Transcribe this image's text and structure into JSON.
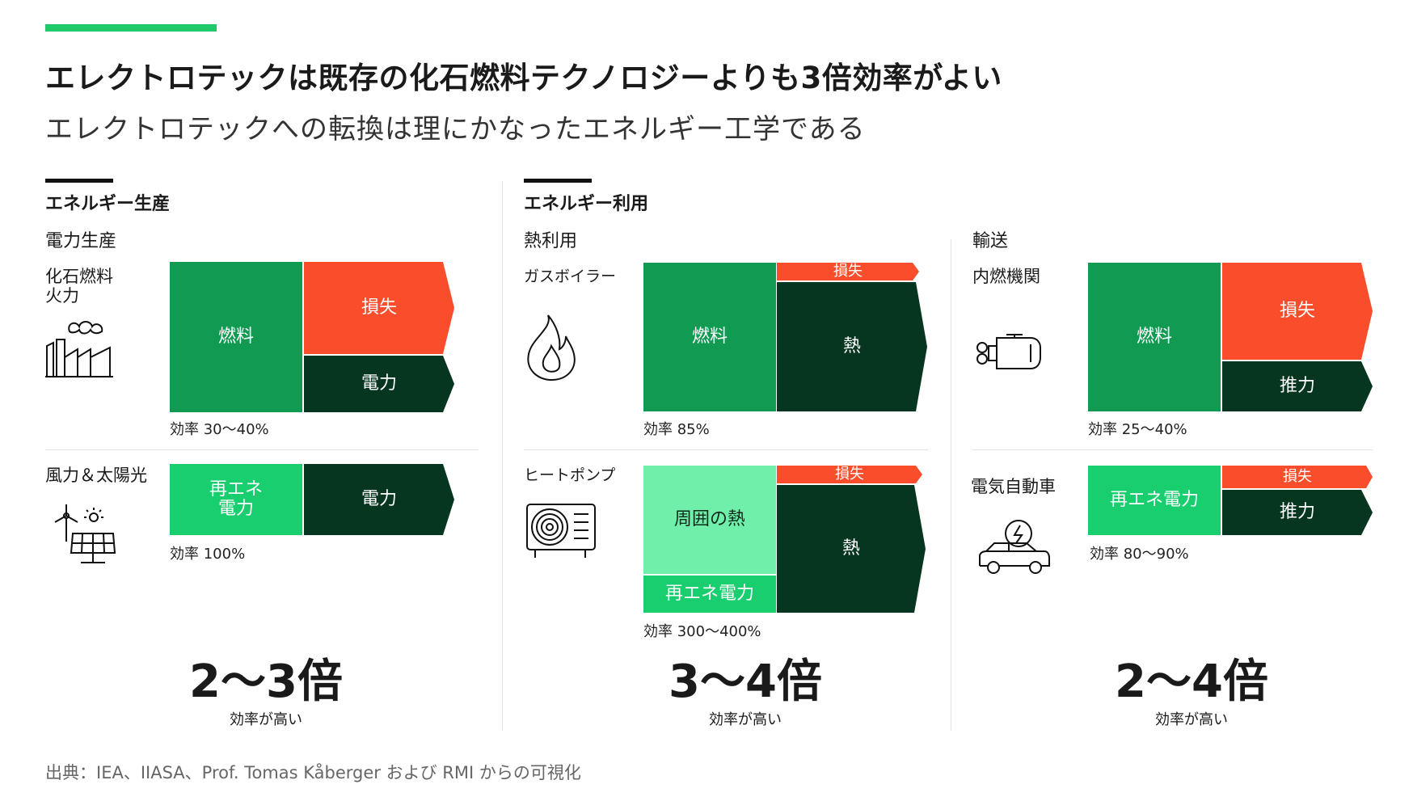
{
  "header": {
    "title": "エレクトロテックは既存の化石燃料テクノロジーよりも3倍効率がよい",
    "subtitle": "エレクトロテックへの転換は理にかなったエネルギー工学である"
  },
  "colors": {
    "accent": "#1ec96a",
    "fuel": "#119a52",
    "loss": "#f94d2b",
    "output": "#063520",
    "renewable": "#18ce6e",
    "ambient_heat": "#6fefaa"
  },
  "sections": {
    "production": {
      "title": "エネルギー生産",
      "subtitle": "電力生産",
      "rows": [
        {
          "label": "化石燃料\n火力",
          "icon": "factory-icon",
          "blocks": {
            "input": "燃料",
            "loss": "損失",
            "output": "電力"
          },
          "efficiency": "効率 30〜40%"
        },
        {
          "label": "風力＆太陽光",
          "icon": "wind-solar-icon",
          "blocks": {
            "input": "再エネ\n電力",
            "output": "電力"
          },
          "efficiency": "効率 100%"
        }
      ],
      "summary": {
        "value": "2〜3倍",
        "caption": "効率が高い"
      }
    },
    "usage": {
      "title": "エネルギー利用",
      "heat": {
        "subtitle": "熱利用",
        "rows": [
          {
            "label": "ガスボイラー",
            "icon": "flame-icon",
            "blocks": {
              "input": "燃料",
              "loss": "損失",
              "output": "熱"
            },
            "efficiency": "効率 85%"
          },
          {
            "label": "ヒートポンプ",
            "icon": "heat-pump-icon",
            "blocks": {
              "ambient": "周囲の熱",
              "input": "再エネ電力",
              "loss": "損失",
              "output": "熱"
            },
            "efficiency": "効率 300〜400%"
          }
        ],
        "summary": {
          "value": "3〜4倍",
          "caption": "効率が高い"
        }
      },
      "transport": {
        "subtitle": "輸送",
        "rows": [
          {
            "label": "内燃機関",
            "icon": "engine-icon",
            "blocks": {
              "input": "燃料",
              "loss": "損失",
              "output": "推力"
            },
            "efficiency": "効率 25〜40%"
          },
          {
            "label": "電気自動車",
            "icon": "electric-car-icon",
            "blocks": {
              "input": "再エネ電力",
              "loss": "損失",
              "output": "推力"
            },
            "efficiency": "効率 80〜90%"
          }
        ],
        "summary": {
          "value": "2〜4倍",
          "caption": "効率が高い"
        }
      }
    }
  },
  "source": "出典：IEA、IIASA、Prof. Tomas Kåberger および RMI からの可視化"
}
